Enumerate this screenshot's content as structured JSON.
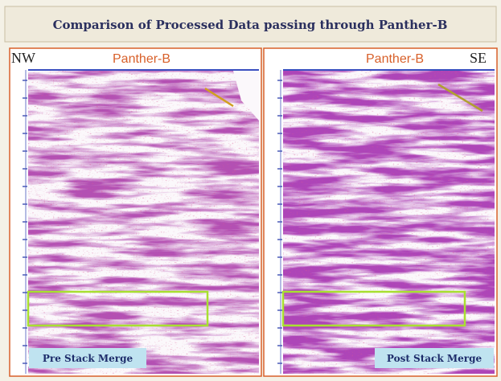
{
  "header": {
    "title": "Comparison of Processed Data passing through Panther-B"
  },
  "panels": [
    {
      "left_label": "NW",
      "well_label": "Panther-B",
      "caption": "Pre Stack Merge"
    },
    {
      "well_label": "Panther-B",
      "right_label": "SE",
      "caption": "Post Stack Merge"
    }
  ]
}
